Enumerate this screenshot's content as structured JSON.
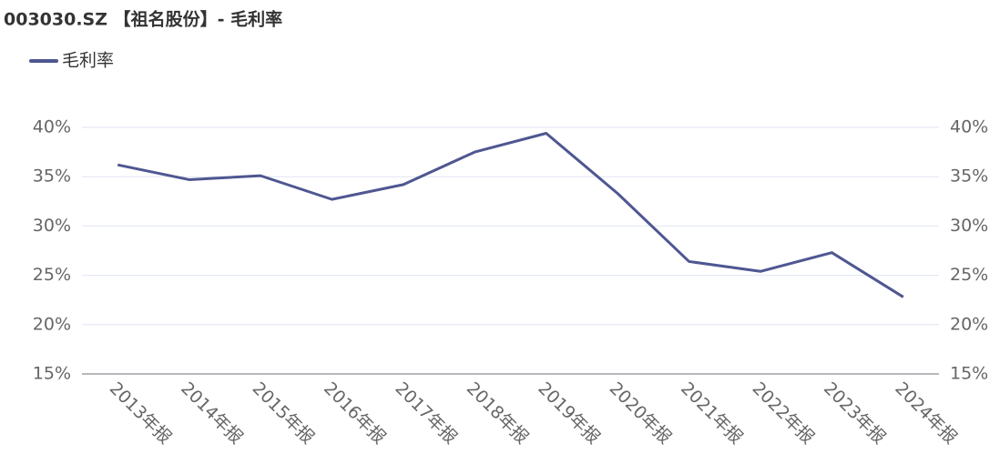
{
  "chart_data": {
    "type": "line",
    "title": "003030.SZ 【祖名股份】- 毛利率",
    "categories": [
      "2013年报",
      "2014年报",
      "2015年报",
      "2016年报",
      "2017年报",
      "2018年报",
      "2019年报",
      "2020年报",
      "2021年报",
      "2022年报",
      "2023年报",
      "2024年报"
    ],
    "series": [
      {
        "name": "毛利率",
        "color": "#4e5791",
        "values": [
          36.2,
          34.7,
          35.1,
          32.7,
          34.2,
          37.5,
          39.4,
          33.3,
          26.4,
          25.4,
          27.3,
          22.8
        ]
      }
    ],
    "ylim": [
      15,
      40
    ],
    "yticks": [
      {
        "value": 15,
        "label": "15%"
      },
      {
        "value": 20,
        "label": "20%"
      },
      {
        "value": 25,
        "label": "25%"
      },
      {
        "value": 30,
        "label": "30%"
      },
      {
        "value": 35,
        "label": "35%"
      },
      {
        "value": 40,
        "label": "40%"
      }
    ],
    "grid": true,
    "legend": "top-left"
  }
}
